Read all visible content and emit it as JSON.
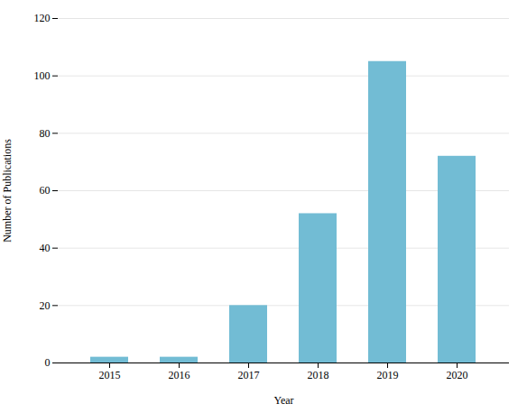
{
  "chart_data": {
    "type": "bar",
    "categories": [
      "2015",
      "2016",
      "2017",
      "2018",
      "2019",
      "2020"
    ],
    "values": [
      2,
      2,
      20,
      52,
      105,
      72
    ],
    "color": "#72bcd4",
    "xlabel": "Year",
    "ylabel": "Number of Publications",
    "ylim": [
      0,
      120
    ],
    "yticks": [
      0,
      20,
      40,
      60,
      80,
      100,
      120
    ],
    "grid": true
  }
}
